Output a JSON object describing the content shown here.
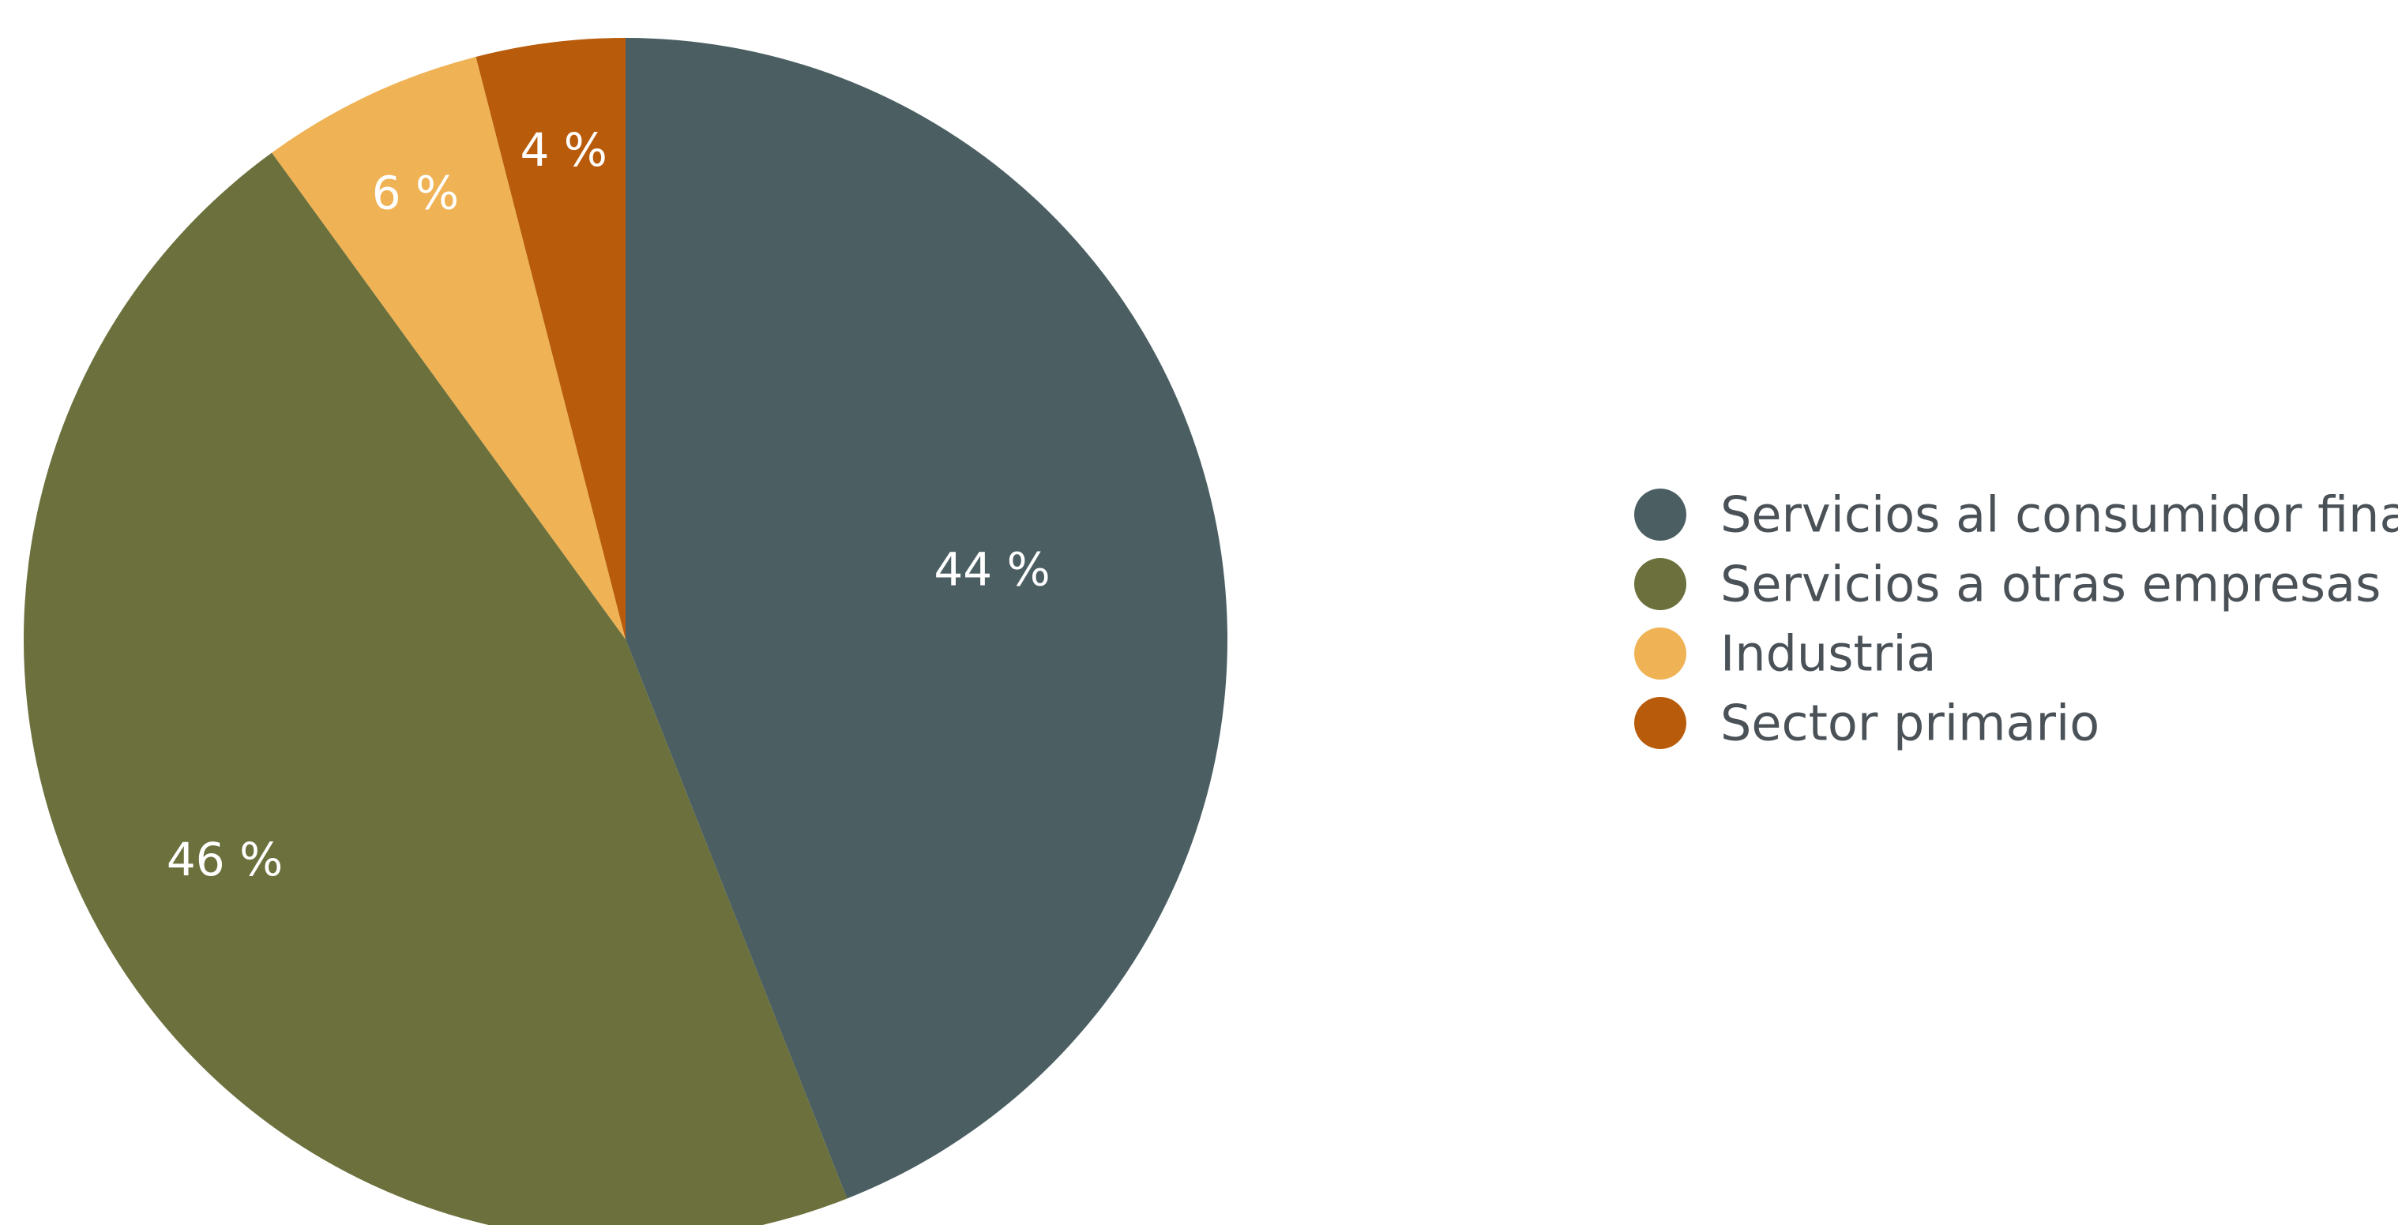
{
  "chart_data": {
    "type": "pie",
    "title": "",
    "slices": [
      {
        "label": "Servicios al consumidor final",
        "value": 44,
        "display": "44 %",
        "color": "#4b5f63"
      },
      {
        "label": "Servicios a otras empresas",
        "value": 46,
        "display": "46 %",
        "color": "#6b703c"
      },
      {
        "label": "Industria",
        "value": 6,
        "display": "6 %",
        "color": "#efb254"
      },
      {
        "label": "Sector primario",
        "value": 4,
        "display": "4 %",
        "color": "#b85c0c"
      }
    ],
    "start_angle": "top",
    "direction": "clockwise",
    "legend_position": "right"
  }
}
